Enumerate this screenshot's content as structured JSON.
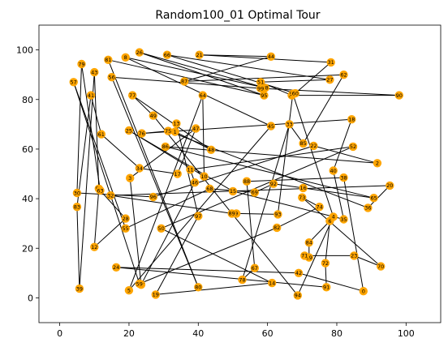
{
  "chart_data": {
    "type": "scatter",
    "title": "Random100_01 Optimal Tour",
    "xlabel": "",
    "ylabel": "",
    "xlim": [
      -6,
      110
    ],
    "ylim": [
      -10,
      110
    ],
    "xticks": [
      0,
      20,
      40,
      60,
      80,
      100
    ],
    "yticks": [
      0,
      20,
      40,
      60,
      80,
      100
    ],
    "grid": false,
    "node_color": "#ffa500",
    "edge_color": "#000000",
    "nodes": [
      {
        "id": "0",
        "x": 87.7,
        "y": 2.7
      },
      {
        "id": "1",
        "x": 33.3,
        "y": 67.0
      },
      {
        "id": "2",
        "x": 91.7,
        "y": 54.3
      },
      {
        "id": "3",
        "x": 20.3,
        "y": 48.3
      },
      {
        "id": "4",
        "x": 79.0,
        "y": 32.7
      },
      {
        "id": "5",
        "x": 20.0,
        "y": 3.0
      },
      {
        "id": "6",
        "x": 78.0,
        "y": 31.0
      },
      {
        "id": "7",
        "x": 23.5,
        "y": 5.4
      },
      {
        "id": "8",
        "x": 19.0,
        "y": 97.0
      },
      {
        "id": "9",
        "x": 51.0,
        "y": 34.0
      },
      {
        "id": "10",
        "x": 41.7,
        "y": 49.0
      },
      {
        "id": "11",
        "x": 37.7,
        "y": 51.7
      },
      {
        "id": "12",
        "x": 10.0,
        "y": 20.5
      },
      {
        "id": "13",
        "x": 33.7,
        "y": 70.3
      },
      {
        "id": "14",
        "x": 61.3,
        "y": 6.0
      },
      {
        "id": "15",
        "x": 50.0,
        "y": 43.0
      },
      {
        "id": "16",
        "x": 70.3,
        "y": 44.3
      },
      {
        "id": "17",
        "x": 34.0,
        "y": 50.0
      },
      {
        "id": "18",
        "x": 84.3,
        "y": 72.0
      },
      {
        "id": "19",
        "x": 27.7,
        "y": 1.3
      },
      {
        "id": "20",
        "x": 95.3,
        "y": 45.3
      },
      {
        "id": "21",
        "x": 40.3,
        "y": 98.0
      },
      {
        "id": "22",
        "x": 73.3,
        "y": 61.3
      },
      {
        "id": "23",
        "x": 85.0,
        "y": 17.0
      },
      {
        "id": "24",
        "x": 16.3,
        "y": 12.3
      },
      {
        "id": "25",
        "x": 20.0,
        "y": 67.5
      },
      {
        "id": "26",
        "x": 23.0,
        "y": 99.0
      },
      {
        "id": "27",
        "x": 78.0,
        "y": 88.0
      },
      {
        "id": "28",
        "x": 19.0,
        "y": 32.0
      },
      {
        "id": "29",
        "x": 72.0,
        "y": 16.3
      },
      {
        "id": "30",
        "x": 5.0,
        "y": 42.3
      },
      {
        "id": "31",
        "x": 78.3,
        "y": 95.0
      },
      {
        "id": "32",
        "x": 14.7,
        "y": 41.3
      },
      {
        "id": "33",
        "x": 66.3,
        "y": 70.0
      },
      {
        "id": "34",
        "x": 23.0,
        "y": 52.3
      },
      {
        "id": "35",
        "x": 82.0,
        "y": 31.7
      },
      {
        "id": "36",
        "x": 89.0,
        "y": 36.3
      },
      {
        "id": "37",
        "x": 23.5,
        "y": 5.3
      },
      {
        "id": "38",
        "x": 82.0,
        "y": 48.5
      },
      {
        "id": "39",
        "x": 5.7,
        "y": 3.7
      },
      {
        "id": "40",
        "x": 79.0,
        "y": 51.3
      },
      {
        "id": "41",
        "x": 9.0,
        "y": 81.7
      },
      {
        "id": "42",
        "x": 69.0,
        "y": 10.0
      },
      {
        "id": "43",
        "x": 10.0,
        "y": 91.0
      },
      {
        "id": "44",
        "x": 61.0,
        "y": 97.3
      },
      {
        "id": "45",
        "x": 61.0,
        "y": 69.3
      },
      {
        "id": "46",
        "x": 39.0,
        "y": 46.5
      },
      {
        "id": "47",
        "x": 39.3,
        "y": 68.3
      },
      {
        "id": "48",
        "x": 43.7,
        "y": 59.7
      },
      {
        "id": "49",
        "x": 27.0,
        "y": 73.5
      },
      {
        "id": "50",
        "x": 29.3,
        "y": 28.0
      },
      {
        "id": "51",
        "x": 58.0,
        "y": 87.0
      },
      {
        "id": "52",
        "x": 84.7,
        "y": 61.0
      },
      {
        "id": "53",
        "x": 67.0,
        "y": 81.7
      },
      {
        "id": "54",
        "x": 67.3,
        "y": 82.3
      },
      {
        "id": "55",
        "x": 19.0,
        "y": 28.0
      },
      {
        "id": "56",
        "x": 15.0,
        "y": 89.0
      },
      {
        "id": "57",
        "x": 4.0,
        "y": 87.0
      },
      {
        "id": "58",
        "x": 11.3,
        "y": 44.0
      },
      {
        "id": "59",
        "x": 23.0,
        "y": 5.7
      },
      {
        "id": "60",
        "x": 68.0,
        "y": 82.5
      },
      {
        "id": "61",
        "x": 12.0,
        "y": 66.0
      },
      {
        "id": "62",
        "x": 82.0,
        "y": 90.0
      },
      {
        "id": "63",
        "x": 11.7,
        "y": 43.3
      },
      {
        "id": "64",
        "x": 41.3,
        "y": 81.7
      },
      {
        "id": "65",
        "x": 90.7,
        "y": 40.3
      },
      {
        "id": "66",
        "x": 31.0,
        "y": 98.0
      },
      {
        "id": "67",
        "x": 56.3,
        "y": 12.0
      },
      {
        "id": "68",
        "x": 43.3,
        "y": 44.0
      },
      {
        "id": "69",
        "x": 56.3,
        "y": 42.5
      },
      {
        "id": "70",
        "x": 92.7,
        "y": 12.7
      },
      {
        "id": "71",
        "x": 70.7,
        "y": 17.0
      },
      {
        "id": "72",
        "x": 76.7,
        "y": 14.0
      },
      {
        "id": "73",
        "x": 70.0,
        "y": 40.5
      },
      {
        "id": "74",
        "x": 75.0,
        "y": 36.7
      },
      {
        "id": "75",
        "x": 31.3,
        "y": 67.3
      },
      {
        "id": "76",
        "x": 23.7,
        "y": 66.3
      },
      {
        "id": "77",
        "x": 21.0,
        "y": 81.7
      },
      {
        "id": "78",
        "x": 52.7,
        "y": 7.3
      },
      {
        "id": "79",
        "x": 6.3,
        "y": 94.3
      },
      {
        "id": "80",
        "x": 40.0,
        "y": 4.3
      },
      {
        "id": "81",
        "x": 14.0,
        "y": 96.0
      },
      {
        "id": "82",
        "x": 62.7,
        "y": 28.3
      },
      {
        "id": "83",
        "x": 5.0,
        "y": 36.7
      },
      {
        "id": "84",
        "x": 72.0,
        "y": 22.3
      },
      {
        "id": "85",
        "x": 70.3,
        "y": 62.3
      },
      {
        "id": "86",
        "x": 30.5,
        "y": 61.0
      },
      {
        "id": "87",
        "x": 36.0,
        "y": 87.3
      },
      {
        "id": "88",
        "x": 54.0,
        "y": 47.0
      },
      {
        "id": "89",
        "x": 49.7,
        "y": 34.0
      },
      {
        "id": "90",
        "x": 98.0,
        "y": 81.7
      },
      {
        "id": "91",
        "x": 77.0,
        "y": 4.3
      },
      {
        "id": "92",
        "x": 61.7,
        "y": 46.0
      },
      {
        "id": "93",
        "x": 63.0,
        "y": 33.7
      },
      {
        "id": "94",
        "x": 68.7,
        "y": 1.0
      },
      {
        "id": "95",
        "x": 59.0,
        "y": 81.7
      },
      {
        "id": "96",
        "x": 27.0,
        "y": 40.7
      },
      {
        "id": "97",
        "x": 40.0,
        "y": 33.0
      },
      {
        "id": "98",
        "x": 59.3,
        "y": 84.7
      },
      {
        "id": "99",
        "x": 58.0,
        "y": 84.5
      }
    ],
    "tour": [
      "0",
      "42",
      "24",
      "91",
      "72",
      "6",
      "84",
      "29",
      "71",
      "23",
      "70",
      "73",
      "74",
      "82",
      "59",
      "57",
      "55",
      "68",
      "69",
      "92",
      "16",
      "65",
      "86",
      "2",
      "22",
      "96",
      "30",
      "79",
      "63",
      "28",
      "12",
      "58",
      "43",
      "39",
      "83",
      "41",
      "61",
      "34",
      "17",
      "47",
      "3",
      "37",
      "46",
      "11",
      "52",
      "50",
      "14",
      "19",
      "97",
      "13",
      "1",
      "48",
      "77",
      "49",
      "94",
      "4",
      "54",
      "93",
      "9",
      "89",
      "32",
      "20",
      "36",
      "75",
      "76",
      "18",
      "40",
      "35",
      "15",
      "25",
      "10",
      "64",
      "5",
      "45",
      "8",
      "98",
      "26",
      "95",
      "81",
      "80",
      "56",
      "99",
      "90",
      "53",
      "51",
      "27",
      "66",
      "60",
      "31",
      "21",
      "44",
      "87",
      "62",
      "85",
      "33",
      "78",
      "67",
      "88",
      "38",
      "0"
    ]
  }
}
